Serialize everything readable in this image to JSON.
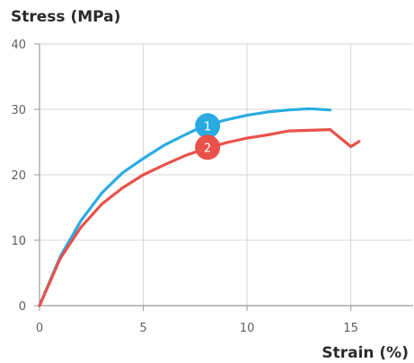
{
  "chart_data": {
    "type": "line",
    "xlabel": "Strain (%)",
    "ylabel": "Stress (MPa)",
    "xlim": [
      0,
      18
    ],
    "ylim": [
      0,
      40
    ],
    "x_ticks": [
      0,
      5,
      10,
      15
    ],
    "y_ticks": [
      0,
      10,
      20,
      30,
      40
    ],
    "grid": true,
    "series": [
      {
        "marker_label": "1",
        "color": "#29abe2",
        "marker_at": [
          8.1,
          27.5
        ],
        "x": [
          0,
          1,
          2,
          3,
          4,
          5,
          6,
          7,
          8,
          9,
          10,
          11,
          12,
          13,
          14
        ],
        "y": [
          0,
          7.5,
          13,
          17.2,
          20.3,
          22.5,
          24.5,
          26.1,
          27.6,
          28.4,
          29.1,
          29.6,
          29.9,
          30.1,
          29.9
        ]
      },
      {
        "marker_label": "2",
        "color": "#e8524a",
        "marker_at": [
          8.1,
          24.2
        ],
        "x": [
          0,
          1,
          2,
          3,
          4,
          5,
          6,
          7,
          8,
          9,
          10,
          11,
          12,
          13,
          14,
          15.0,
          15.4
        ],
        "y": [
          0,
          7.2,
          12,
          15.5,
          18,
          20,
          21.5,
          22.9,
          24.0,
          24.9,
          25.6,
          26.1,
          26.7,
          26.8,
          26.9,
          24.3,
          25.1
        ]
      }
    ]
  }
}
